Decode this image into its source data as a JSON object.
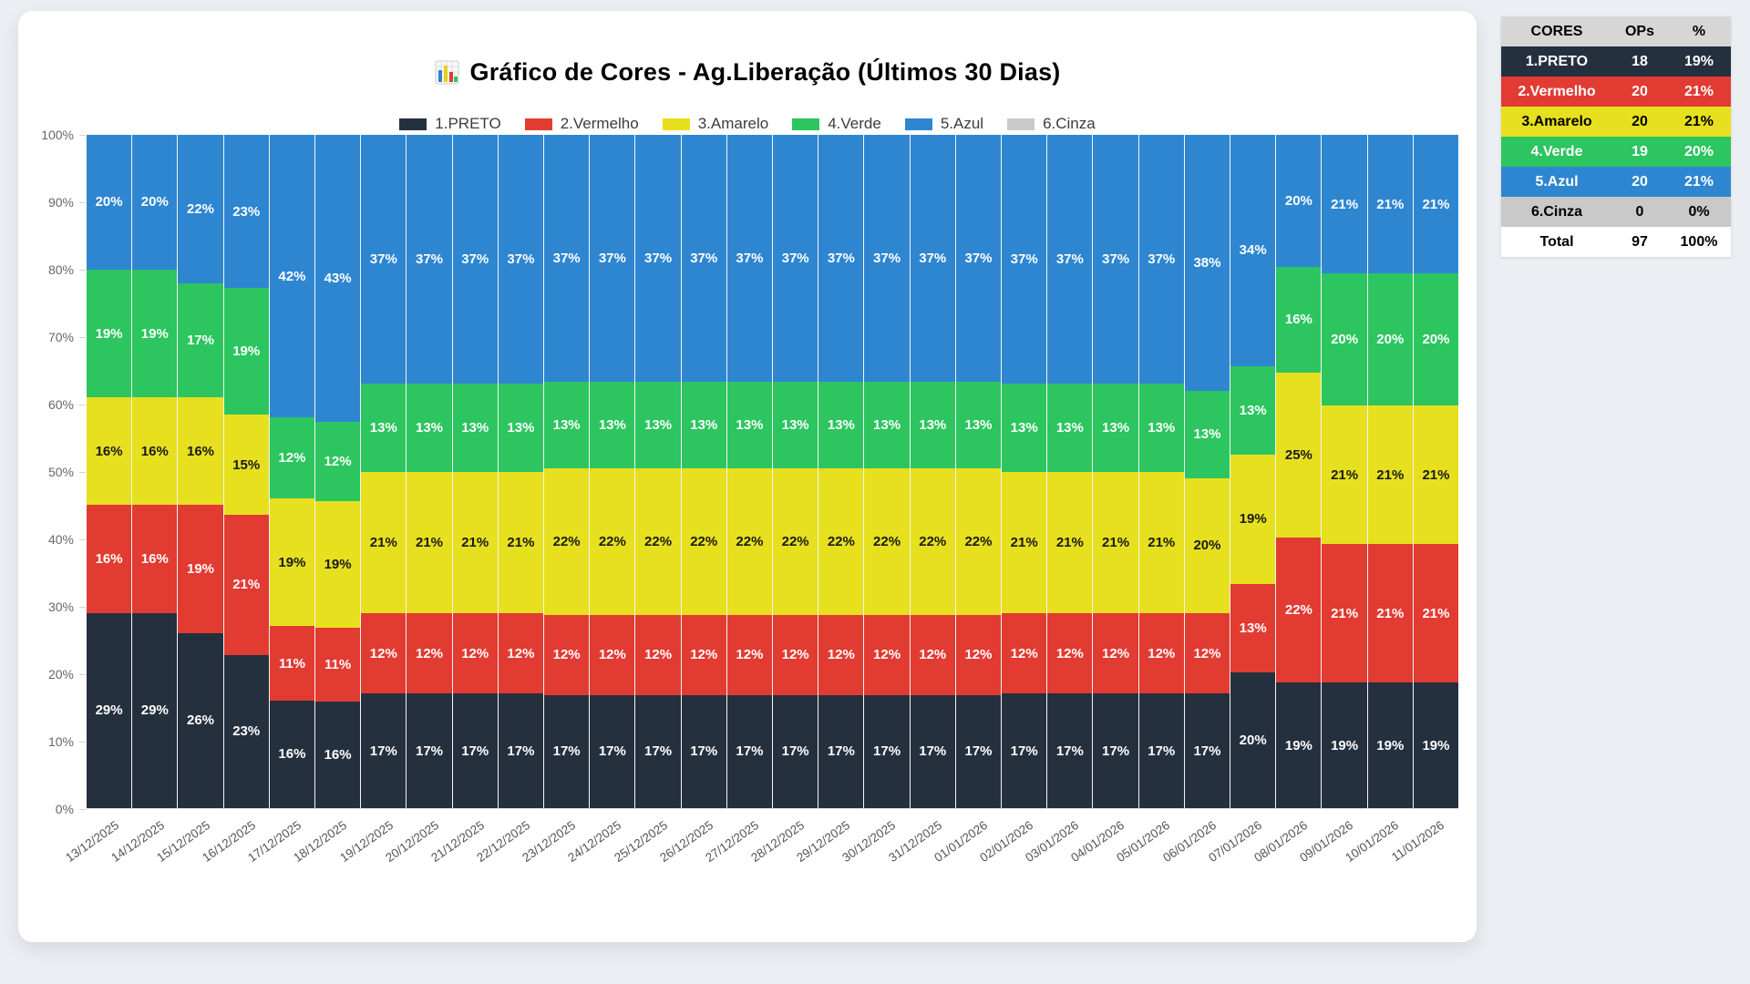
{
  "title": "Gráfico de Cores - Ag.Liberação (Últimos 30 Dias)",
  "chart_data": {
    "type": "area",
    "variant": "stacked-step-100percent",
    "title": "Gráfico de Cores - Ag.Liberação (Últimos 30 Dias)",
    "legend_position": "top",
    "ylim": [
      0,
      100
    ],
    "y_ticks": [
      "100%",
      "90%",
      "80%",
      "70%",
      "60%",
      "50%",
      "40%",
      "30%",
      "20%",
      "10%",
      "0%"
    ],
    "categories": [
      "13/12/2025",
      "14/12/2025",
      "15/12/2025",
      "16/12/2025",
      "17/12/2025",
      "18/12/2025",
      "19/12/2025",
      "20/12/2025",
      "21/12/2025",
      "22/12/2025",
      "23/12/2025",
      "24/12/2025",
      "25/12/2025",
      "26/12/2025",
      "27/12/2025",
      "28/12/2025",
      "29/12/2025",
      "30/12/2025",
      "31/12/2025",
      "01/01/2026",
      "02/01/2026",
      "03/01/2026",
      "04/01/2026",
      "05/01/2026",
      "06/01/2026",
      "07/01/2026",
      "08/01/2026",
      "09/01/2026",
      "10/01/2026",
      "11/01/2026"
    ],
    "series": [
      {
        "name": "1.PRETO",
        "color": "#25303F",
        "label_color": "#ffffff",
        "values": [
          29,
          29,
          26,
          23,
          16,
          16,
          17,
          17,
          17,
          17,
          17,
          17,
          17,
          17,
          17,
          17,
          17,
          17,
          17,
          17,
          17,
          17,
          17,
          17,
          17,
          20,
          19,
          19,
          19,
          19
        ]
      },
      {
        "name": "2.Vermelho",
        "color": "#E23B32",
        "label_color": "#ffffff",
        "values": [
          16,
          16,
          19,
          21,
          11,
          11,
          12,
          12,
          12,
          12,
          12,
          12,
          12,
          12,
          12,
          12,
          12,
          12,
          12,
          12,
          12,
          12,
          12,
          12,
          12,
          13,
          22,
          21,
          21,
          21
        ]
      },
      {
        "name": "3.Amarelo",
        "color": "#E7E01E",
        "label_color": "#1a1a1a",
        "values": [
          16,
          16,
          16,
          15,
          19,
          19,
          21,
          21,
          21,
          21,
          22,
          22,
          22,
          22,
          22,
          22,
          22,
          22,
          22,
          22,
          21,
          21,
          21,
          21,
          20,
          19,
          25,
          21,
          21,
          21
        ]
      },
      {
        "name": "4.Verde",
        "color": "#2CC55F",
        "label_color": "#ffffff",
        "values": [
          19,
          19,
          17,
          19,
          12,
          12,
          13,
          13,
          13,
          13,
          13,
          13,
          13,
          13,
          13,
          13,
          13,
          13,
          13,
          13,
          13,
          13,
          13,
          13,
          13,
          13,
          16,
          20,
          20,
          20
        ]
      },
      {
        "name": "5.Azul",
        "color": "#2E86D1",
        "label_color": "#ffffff",
        "values": [
          20,
          20,
          22,
          23,
          42,
          43,
          37,
          37,
          37,
          37,
          37,
          37,
          37,
          37,
          37,
          37,
          37,
          37,
          37,
          37,
          37,
          37,
          37,
          37,
          38,
          34,
          20,
          21,
          21,
          21
        ]
      },
      {
        "name": "6.Cinza",
        "color": "#C9C9C9",
        "label_color": "#1a1a1a",
        "values": [
          0,
          0,
          0,
          0,
          0,
          0,
          0,
          0,
          0,
          0,
          0,
          0,
          0,
          0,
          0,
          0,
          0,
          0,
          0,
          0,
          0,
          0,
          0,
          0,
          0,
          0,
          0,
          0,
          0,
          0
        ]
      }
    ]
  },
  "summary_table": {
    "headers": [
      "CORES",
      "OPs",
      "%"
    ],
    "header_bg": "#D6D6D6",
    "header_fg": "#000000",
    "rows": [
      {
        "label": "1.PRETO",
        "ops": "18",
        "pct": "19%",
        "bg": "#25303F",
        "fg": "#ffffff"
      },
      {
        "label": "2.Vermelho",
        "ops": "20",
        "pct": "21%",
        "bg": "#E23B32",
        "fg": "#ffffff"
      },
      {
        "label": "3.Amarelo",
        "ops": "20",
        "pct": "21%",
        "bg": "#E7E01E",
        "fg": "#000000"
      },
      {
        "label": "4.Verde",
        "ops": "19",
        "pct": "20%",
        "bg": "#2CC55F",
        "fg": "#ffffff"
      },
      {
        "label": "5.Azul",
        "ops": "20",
        "pct": "21%",
        "bg": "#2E86D1",
        "fg": "#ffffff"
      },
      {
        "label": "6.Cinza",
        "ops": "0",
        "pct": "0%",
        "bg": "#C9C9C9",
        "fg": "#000000"
      },
      {
        "label": "Total",
        "ops": "97",
        "pct": "100%",
        "bg": "#FFFFFF",
        "fg": "#000000"
      }
    ]
  }
}
